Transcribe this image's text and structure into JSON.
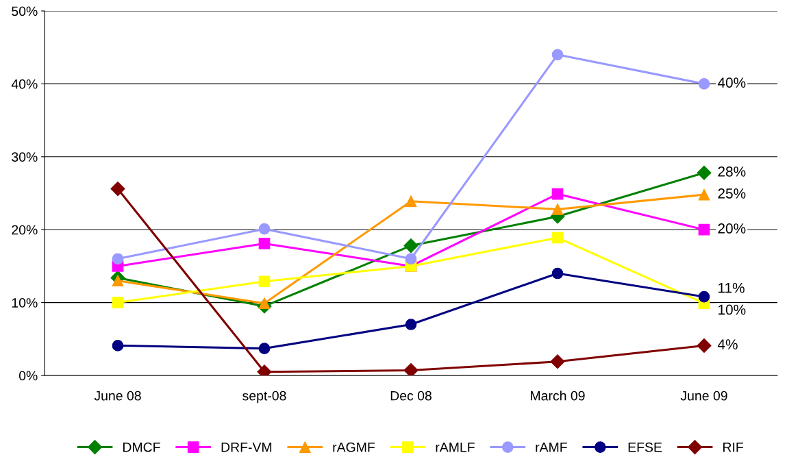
{
  "chart_data": {
    "type": "line",
    "categories": [
      "June 08",
      "sept-08",
      "Dec 08",
      "March 09",
      "June 09"
    ],
    "ylim": [
      0,
      50
    ],
    "yticks": [
      {
        "value": 0,
        "label": "0%"
      },
      {
        "value": 10,
        "label": "10%"
      },
      {
        "value": 20,
        "label": "20%"
      },
      {
        "value": 30,
        "label": "30%"
      },
      {
        "value": 40,
        "label": "40%"
      },
      {
        "value": 50,
        "label": "50%"
      }
    ],
    "grid": "y",
    "legend": "bottom",
    "series": [
      {
        "name": "DMCF",
        "color": "#008000",
        "marker": "diamond",
        "values": [
          13.4,
          9.5,
          17.8,
          21.8,
          27.8
        ],
        "value_labels": [
          null,
          null,
          null,
          null,
          "28%"
        ]
      },
      {
        "name": "DRF-VM",
        "color": "#ff00ff",
        "marker": "square",
        "values": [
          15.0,
          18.1,
          15.0,
          24.9,
          20.0
        ],
        "value_labels": [
          null,
          null,
          null,
          null,
          "20%"
        ]
      },
      {
        "name": "rAGMF",
        "color": "#ff9900",
        "marker": "triangle",
        "values": [
          13.0,
          9.9,
          23.9,
          22.8,
          24.8
        ],
        "value_labels": [
          null,
          null,
          null,
          null,
          "25%"
        ]
      },
      {
        "name": "rAMLF",
        "color": "#ffff00",
        "marker": "square",
        "values": [
          10.0,
          12.9,
          15.0,
          18.9,
          9.9
        ],
        "value_labels": [
          null,
          null,
          null,
          null,
          "10%"
        ]
      },
      {
        "name": "rAMF",
        "color": "#9999ff",
        "marker": "circle",
        "values": [
          16.0,
          20.1,
          16.0,
          44.0,
          40.0
        ],
        "value_labels": [
          null,
          null,
          null,
          null,
          "40%"
        ]
      },
      {
        "name": "EFSE",
        "color": "#000080",
        "marker": "circle",
        "values": [
          4.1,
          3.7,
          7.0,
          14.0,
          10.8
        ],
        "value_labels": [
          null,
          null,
          null,
          null,
          "11%"
        ]
      },
      {
        "name": "RIF",
        "color": "#800000",
        "marker": "diamond",
        "values": [
          25.6,
          0.5,
          0.7,
          1.9,
          4.1
        ],
        "value_labels": [
          null,
          null,
          null,
          null,
          "4%"
        ]
      }
    ]
  }
}
